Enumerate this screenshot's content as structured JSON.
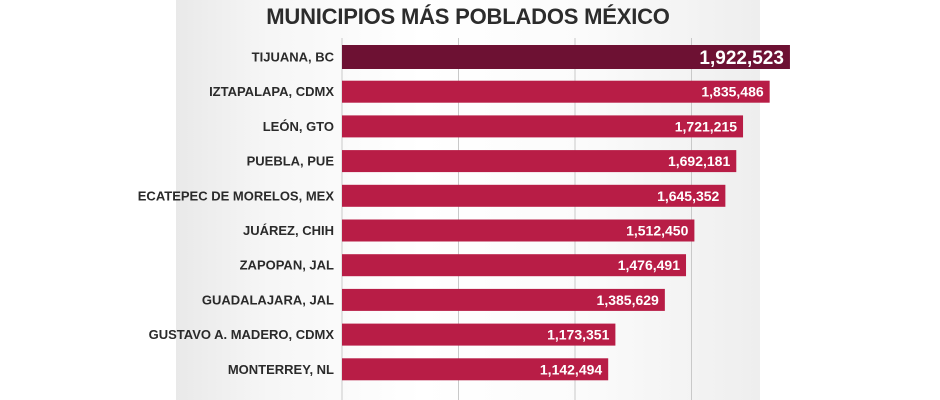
{
  "chart_data": {
    "type": "bar",
    "orientation": "horizontal",
    "title": "MUNICIPIOS MÁS POBLADOS MÉXICO",
    "categories": [
      "TIJUANA, BC",
      "IZTAPALAPA, CDMX",
      "LEÓN, GTO",
      "PUEBLA, PUE",
      "ECATEPEC DE MORELOS, MEX",
      "JUÁREZ, CHIH",
      "ZAPOPAN, JAL",
      "GUADALAJARA, JAL",
      "GUSTAVO A. MADERO, CDMX",
      "MONTERREY, NL"
    ],
    "values": [
      1922523,
      1835486,
      1721215,
      1692181,
      1645352,
      1512450,
      1476491,
      1385629,
      1173351,
      1142494
    ],
    "value_labels": [
      "1,922,523",
      "1,835,486",
      "1,721,215",
      "1,692,181",
      "1,645,352",
      "1,512,450",
      "1,476,491",
      "1,385,629",
      "1,173,351",
      "1,142,494"
    ],
    "xlim": [
      0,
      2300000
    ],
    "xlabel": "",
    "ylabel": "",
    "grid": true,
    "data_labels": "inside-end",
    "colors": {
      "highlight": "#6d1133",
      "bar": "#b81d46",
      "gridline": "#c9c9c9",
      "label_text": "#2a2a2a",
      "value_text": "#ffffff"
    }
  }
}
